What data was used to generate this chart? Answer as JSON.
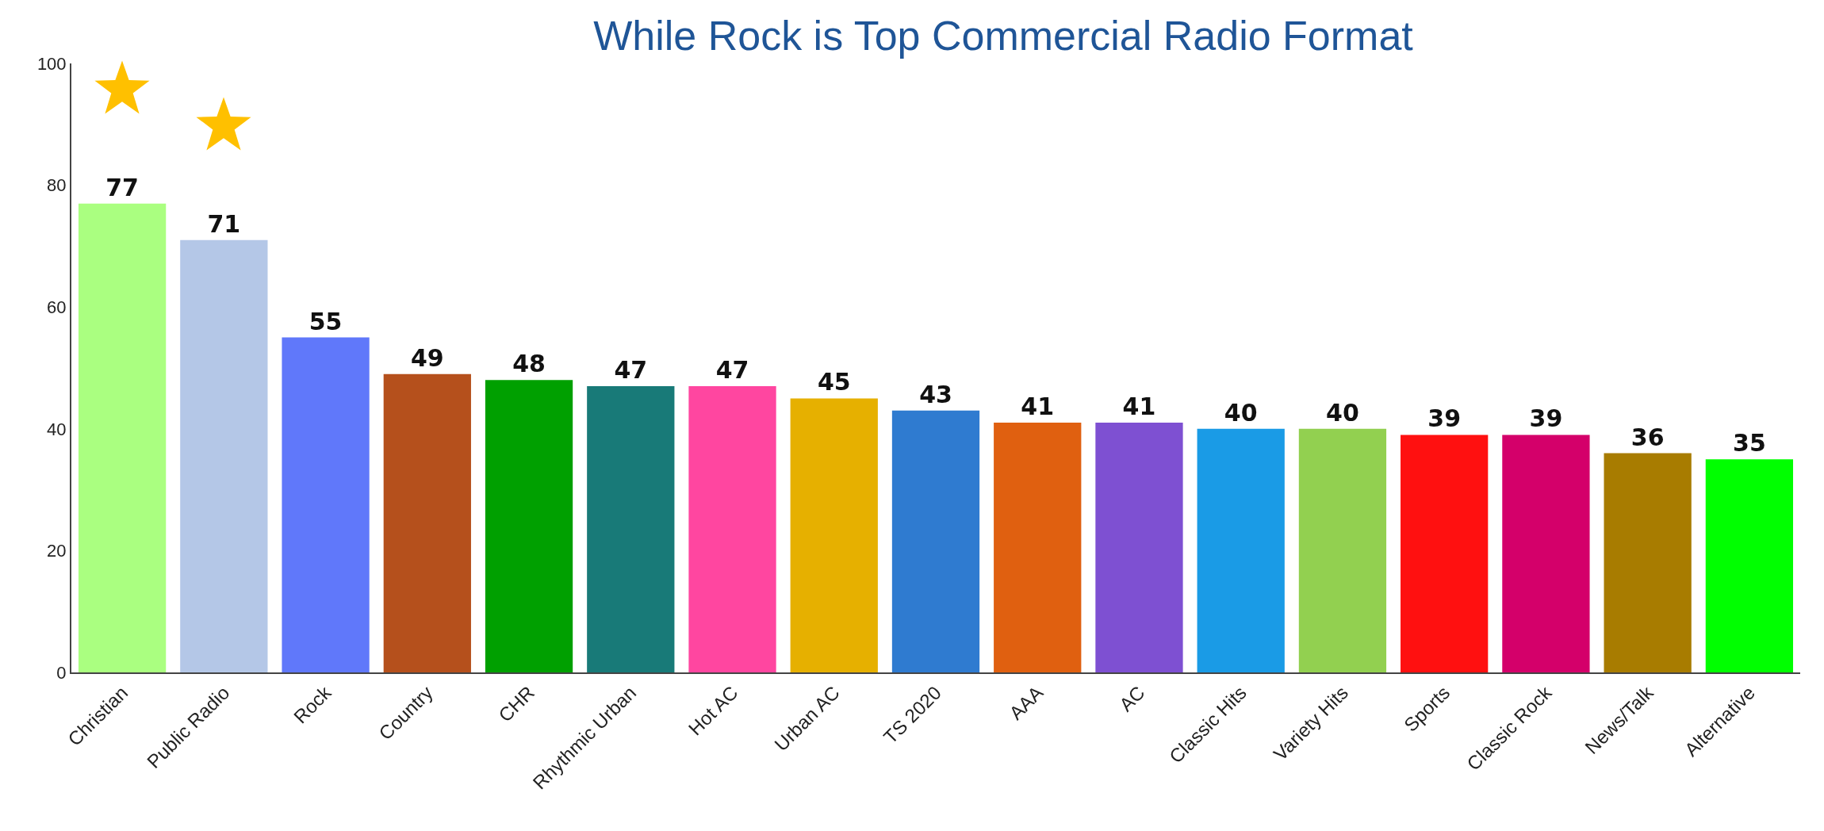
{
  "chart_data": {
    "type": "bar",
    "title": "While Rock is Top Commercial Radio Format",
    "categories": [
      "Christian",
      "Public Radio",
      "Rock",
      "Country",
      "CHR",
      "Rhythmic Urban",
      "Hot AC",
      "Urban AC",
      "TS 2020",
      "AAA",
      "AC",
      "Classic Hits",
      "Variety Hits",
      "Sports",
      "Classic Rock",
      "News/Talk",
      "Alternative"
    ],
    "values": [
      77,
      71,
      55,
      49,
      48,
      47,
      47,
      45,
      43,
      41,
      41,
      40,
      40,
      39,
      39,
      36,
      35
    ],
    "colors": [
      "#aaff80",
      "#b4c7e7",
      "#6078fa",
      "#b5501c",
      "#00a000",
      "#187a78",
      "#ff46a0",
      "#e6b000",
      "#2f7bd0",
      "#e06010",
      "#7e50d2",
      "#1a9be6",
      "#92d050",
      "#ff1010",
      "#d4006a",
      "#a87c00",
      "#00ff00"
    ],
    "ylim": [
      0,
      100
    ],
    "yticks": [
      0,
      20,
      40,
      60,
      80,
      100
    ],
    "grid": false,
    "data_labels": true
  }
}
